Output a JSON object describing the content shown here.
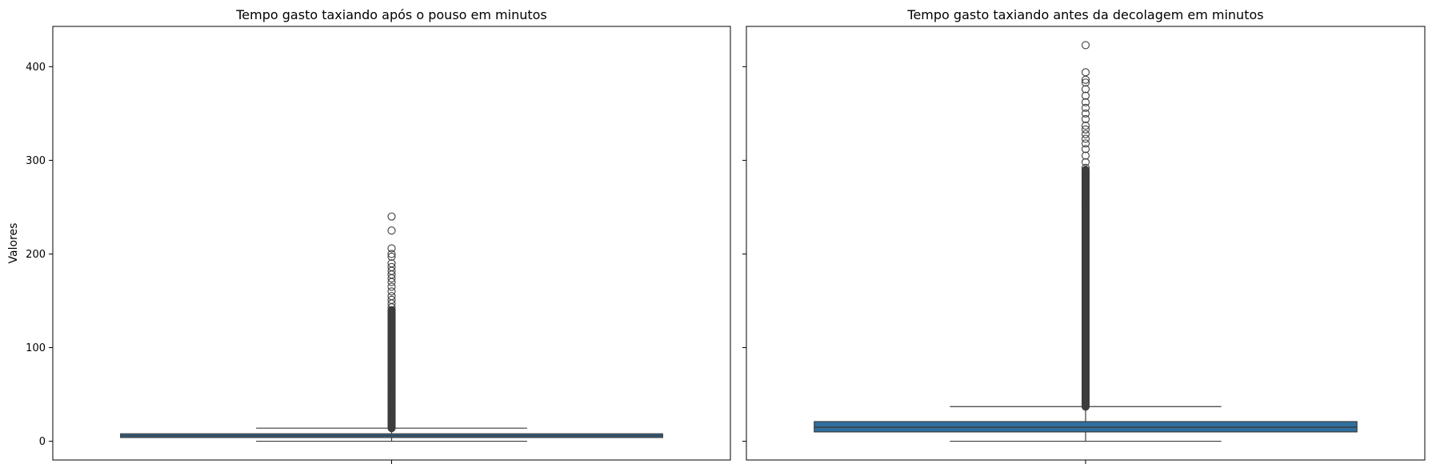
{
  "chart_data": [
    {
      "type": "boxplot",
      "title": "Tempo gasto taxiando após o pouso em minutos",
      "ylabel": "Valores",
      "xlabel": "",
      "ylim": [
        -20,
        443
      ],
      "yticks": [
        0,
        100,
        200,
        300,
        400
      ],
      "ytick_labels": [
        "0",
        "100",
        "200",
        "300",
        "400"
      ],
      "box": {
        "whisker_low": 0,
        "q1": 4,
        "median": 6,
        "q3": 8,
        "whisker_high": 14
      },
      "outlier_dense_range": [
        14,
        140
      ],
      "outliers_sparse": [
        143,
        147,
        151,
        155,
        160,
        165,
        170,
        174,
        178,
        182,
        186,
        190,
        197,
        200,
        206,
        225,
        240
      ],
      "color": "#2f6f9f"
    },
    {
      "type": "boxplot",
      "title": "Tempo gasto taxiando antes da decolagem em minutos",
      "ylabel": "",
      "xlabel": "",
      "ylim": [
        -20,
        443
      ],
      "yticks": [
        0,
        100,
        200,
        300,
        400
      ],
      "ytick_labels": [
        "",
        "",
        "",
        "",
        ""
      ],
      "box": {
        "whisker_low": 0,
        "q1": 10,
        "median": 15,
        "q3": 21,
        "whisker_high": 37
      },
      "outlier_dense_range": [
        37,
        290
      ],
      "outliers_sparse": [
        292,
        298,
        305,
        312,
        318,
        323,
        328,
        333,
        337,
        344,
        350,
        356,
        362,
        369,
        376,
        383,
        386,
        394,
        423
      ],
      "color": "#2f6f9f"
    }
  ]
}
